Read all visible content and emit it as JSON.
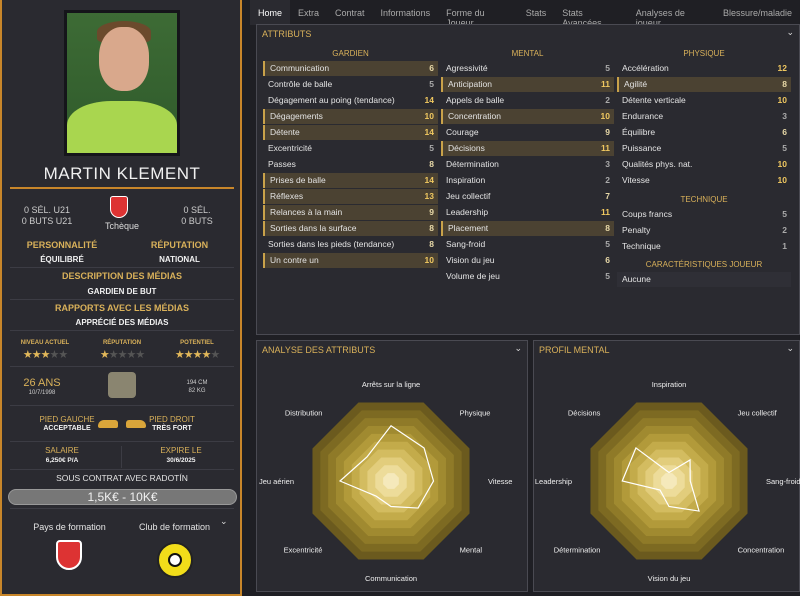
{
  "player": {
    "name": "MARTIN KLEMENT",
    "u21_caps": "0 SÉL. U21",
    "u21_goals": "0 BUTS U21",
    "caps": "0 SÉL.",
    "goals": "0 BUTS",
    "nation": "Tchèque",
    "personality_label": "PERSONNALITÉ",
    "personality": "ÉQUILIBRÉ",
    "reputation_label": "RÉPUTATION",
    "reputation": "NATIONAL",
    "media_desc_label": "DESCRIPTION DES MÉDIAS",
    "media_desc": "GARDIEN DE BUT",
    "media_rel_label": "RAPPORTS AVEC LES MÉDIAS",
    "media_rel": "APPRÉCIÉ DES MÉDIAS",
    "current_label": "NIVEAU ACTUEL",
    "current_stars": 3,
    "rep_label": "RÉPUTATION",
    "rep_stars": 0.5,
    "potential_label": "POTENTIEL",
    "potential_stars": 3.5,
    "age": "26 ANS",
    "dob": "10/7/1998",
    "height": "194 CM",
    "weight": "82 KG",
    "left_foot_label": "PIED GAUCHE",
    "left_foot": "ACCEPTABLE",
    "right_foot_label": "PIED DROIT",
    "right_foot": "TRÈS FORT",
    "salary_label": "SALAIRE",
    "salary": "6,250€ P/A",
    "expires_label": "EXPIRE LE",
    "expires": "30/6/2025",
    "contract": "SOUS CONTRAT AVEC RADOTÍN",
    "value": "1,5K€ - 10K€",
    "training_country": "Pays de formation",
    "training_club": "Club de formation"
  },
  "tabs": [
    "Home",
    "Extra",
    "Contrat",
    "Informations",
    "Forme du Joueur",
    "Stats",
    "Stats Avancées",
    "Analyses de joueur",
    "Blessure/maladie"
  ],
  "attributes": {
    "title": "ATTRIBUTS",
    "goalkeeper": {
      "title": "GARDIEN",
      "items": [
        [
          "Communication",
          6,
          true
        ],
        [
          "Contrôle de balle",
          5,
          false
        ],
        [
          "Dégagement au poing (tendance)",
          14,
          false
        ],
        [
          "Dégagements",
          10,
          true
        ],
        [
          "Détente",
          14,
          true
        ],
        [
          "Excentricité",
          5,
          false
        ],
        [
          "Passes",
          8,
          false
        ],
        [
          "Prises de balle",
          14,
          true
        ],
        [
          "Réflexes",
          13,
          true
        ],
        [
          "Relances à la main",
          9,
          true
        ],
        [
          "Sorties dans la surface",
          8,
          true
        ],
        [
          "Sorties dans les pieds (tendance)",
          8,
          false
        ],
        [
          "Un contre un",
          10,
          true
        ]
      ]
    },
    "mental": {
      "title": "MENTAL",
      "items": [
        [
          "Agressivité",
          5,
          false
        ],
        [
          "Anticipation",
          11,
          true
        ],
        [
          "Appels de balle",
          2,
          false
        ],
        [
          "Concentration",
          10,
          true
        ],
        [
          "Courage",
          9,
          false
        ],
        [
          "Décisions",
          11,
          true
        ],
        [
          "Détermination",
          3,
          false
        ],
        [
          "Inspiration",
          2,
          false
        ],
        [
          "Jeu collectif",
          7,
          false
        ],
        [
          "Leadership",
          11,
          false
        ],
        [
          "Placement",
          8,
          true
        ],
        [
          "Sang-froid",
          5,
          false
        ],
        [
          "Vision du jeu",
          6,
          false
        ],
        [
          "Volume de jeu",
          5,
          false
        ]
      ]
    },
    "physical": {
      "title": "PHYSIQUE",
      "items": [
        [
          "Accélération",
          12,
          false
        ],
        [
          "Agilité",
          8,
          true
        ],
        [
          "Détente verticale",
          10,
          false
        ],
        [
          "Endurance",
          3,
          false
        ],
        [
          "Équilibre",
          6,
          false
        ],
        [
          "Puissance",
          5,
          false
        ],
        [
          "Qualités phys. nat.",
          10,
          false
        ],
        [
          "Vitesse",
          10,
          false
        ]
      ]
    },
    "technical": {
      "title": "TECHNIQUE",
      "items": [
        [
          "Coups francs",
          5,
          false
        ],
        [
          "Penalty",
          2,
          false
        ],
        [
          "Technique",
          1,
          false
        ]
      ]
    },
    "traits": {
      "title": "CARACTÉRISTIQUES JOUEUR",
      "value": "Aucune"
    }
  },
  "radar_attr": {
    "title": "ANALYSE DES ATTRIBUTS",
    "axes": [
      "Arrêts sur la ligne",
      "Physique",
      "Vitesse",
      "Mental",
      "Communication",
      "Excentricité",
      "Jeu aérien",
      "Distribution"
    ],
    "values": [
      13,
      11,
      10,
      9,
      6,
      5,
      12,
      8
    ]
  },
  "radar_mental": {
    "title": "PROFIL MENTAL",
    "axes": [
      "Inspiration",
      "Jeu collectif",
      "Sang-froid",
      "Concentration",
      "Vision du jeu",
      "Détermination",
      "Leadership",
      "Décisions"
    ],
    "values": [
      2,
      7,
      5,
      10,
      6,
      3,
      11,
      11
    ]
  },
  "colors": {
    "accent": "#d9b15a",
    "border": "#c8862a",
    "highlight": "#4b4232"
  }
}
